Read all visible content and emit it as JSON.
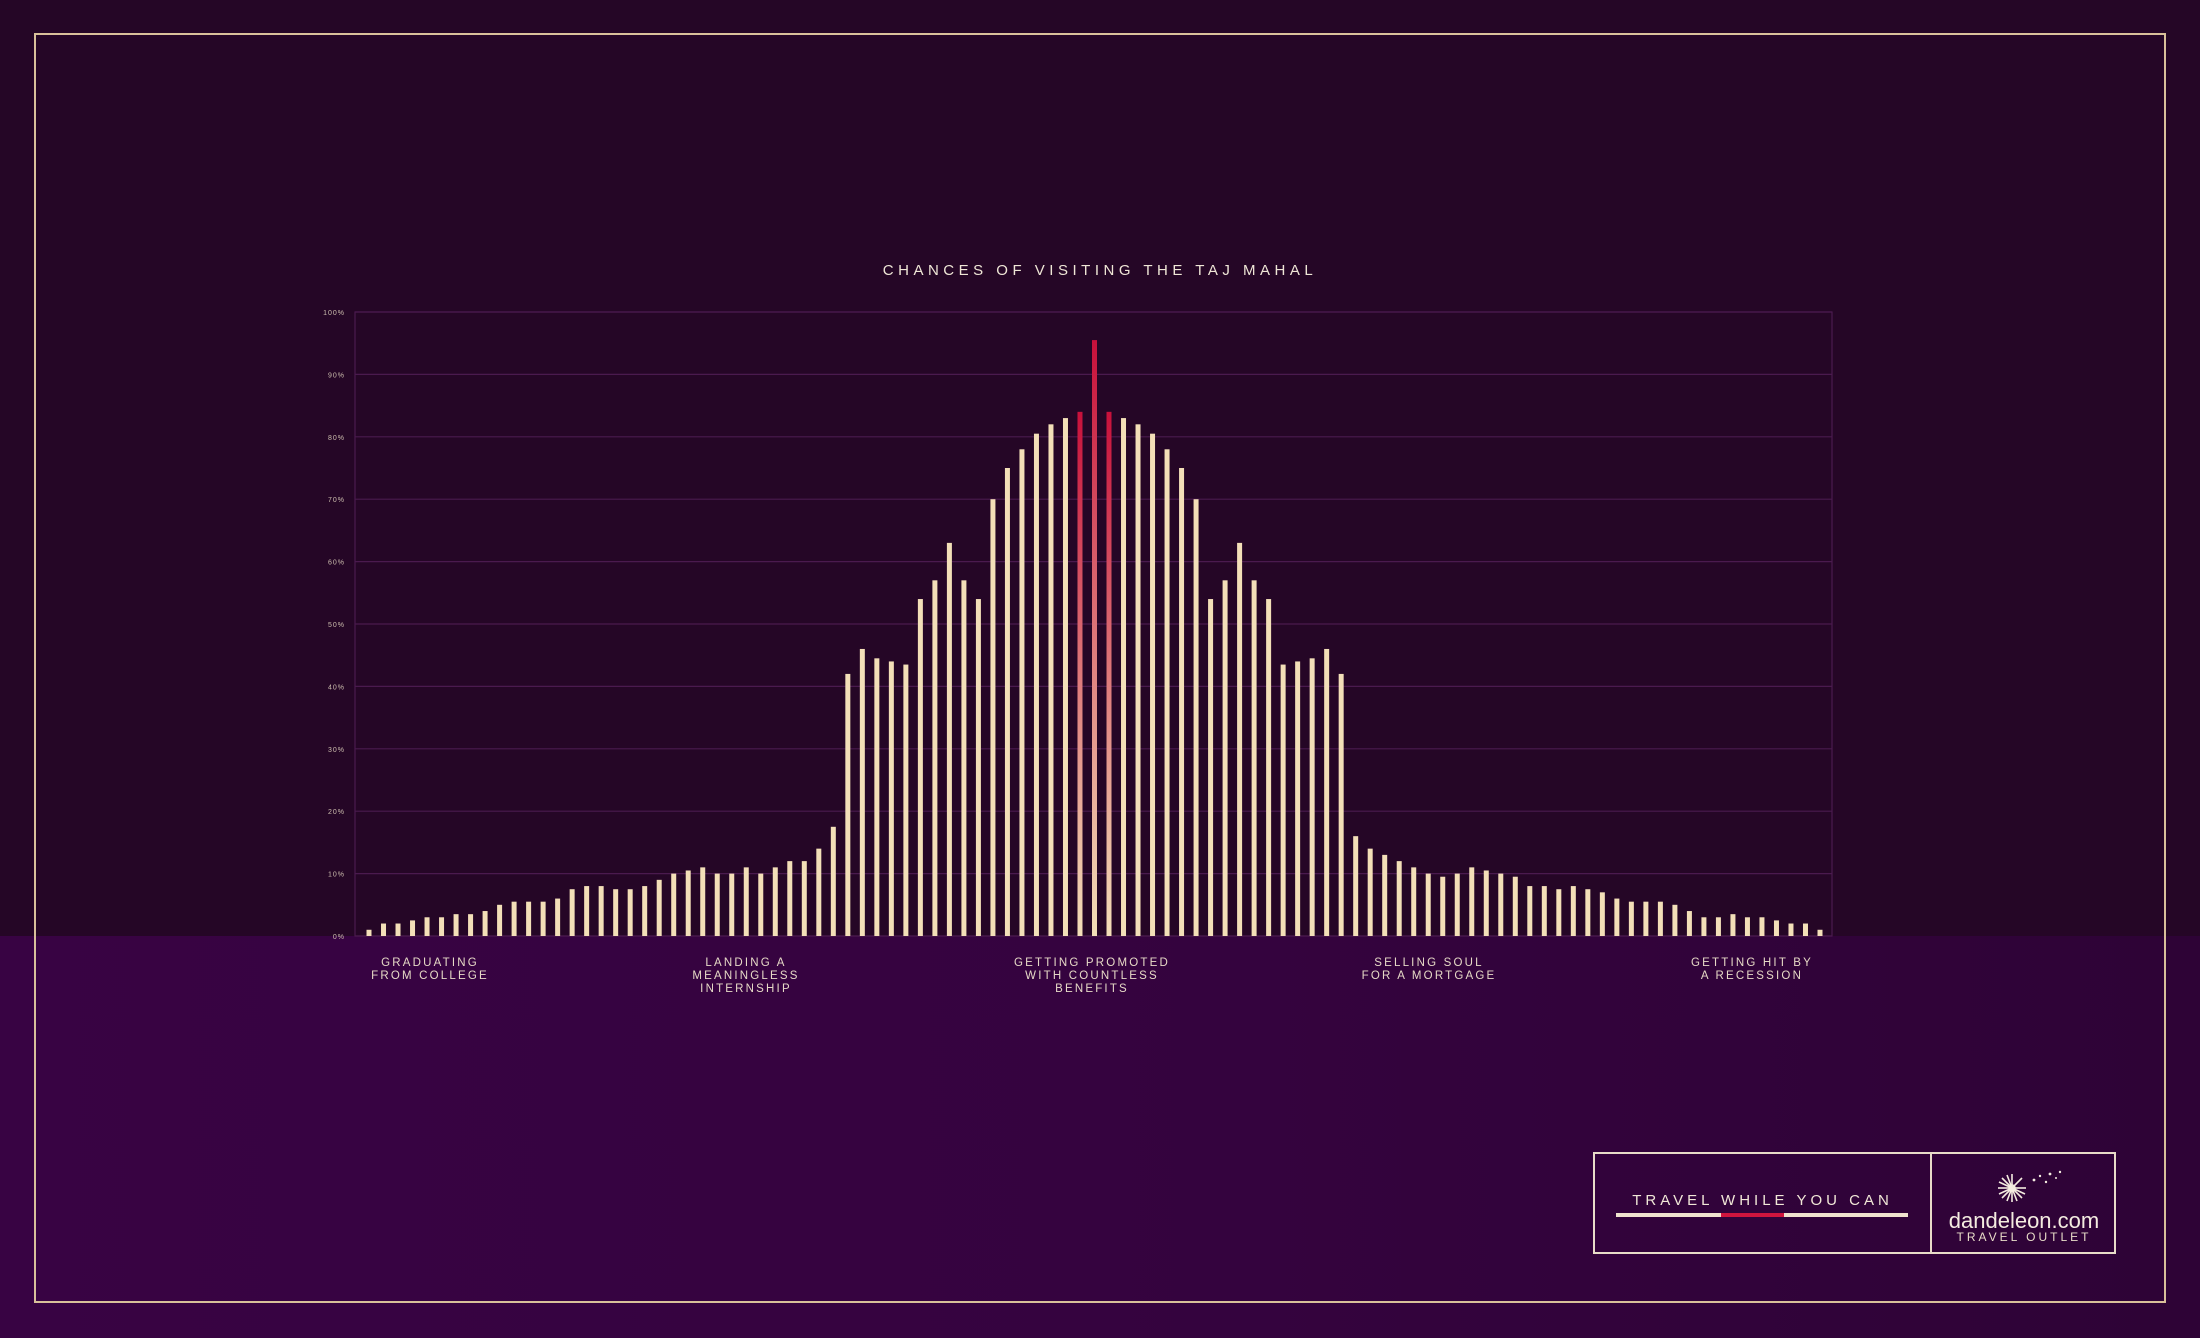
{
  "chart_data": {
    "type": "bar",
    "title": "CHANCES OF VISITING THE TAJ MAHAL",
    "ylim": [
      0,
      100
    ],
    "yticks": [
      "0%",
      "10%",
      "20%",
      "30%",
      "40%",
      "50%",
      "60%",
      "70%",
      "80%",
      "90%",
      "100%"
    ],
    "grid": true,
    "x_labels": [
      "GRADUATING\nFROM COLLEGE",
      "LANDING A\nMEANINGLESS\nINTERNSHIP",
      "GETTING PROMOTED\nWITH COUNTLESS\nBENEFITS",
      "SELLING SOUL\nFOR A MORTGAGE",
      "GETTING HIT BY\nA RECESSION"
    ],
    "values": [
      1,
      2,
      2,
      2.5,
      3,
      3,
      3.5,
      3.5,
      4,
      5,
      5.5,
      5.5,
      5.5,
      6,
      7.5,
      8,
      8,
      7.5,
      7.5,
      8,
      9,
      10,
      10.5,
      11,
      10,
      10,
      11,
      10,
      11,
      12,
      12,
      14,
      17.5,
      42,
      46,
      44.5,
      44,
      43.5,
      54,
      57,
      63,
      57,
      54,
      70,
      75,
      78,
      80.5,
      82,
      83,
      84,
      95.5,
      84,
      83,
      82,
      80.5,
      78,
      75,
      70,
      54,
      57,
      63,
      57,
      54,
      43.5,
      44,
      44.5,
      46,
      42,
      16,
      14,
      13,
      12,
      11,
      10,
      9.5,
      10,
      11,
      10.5,
      10,
      9.5,
      8,
      8,
      7.5,
      8,
      7.5,
      7,
      6,
      5.5,
      5.5,
      5.5,
      5,
      4,
      3,
      3,
      3.5,
      3,
      3,
      2.5,
      2,
      2,
      1
    ],
    "highlight_color": "#c8103b",
    "bar_color": "#f3dfb8"
  },
  "brand": {
    "tagline": "TRAVEL WHILE YOU CAN",
    "name": "dandeleon.com",
    "subtitle": "TRAVEL OUTLET"
  },
  "colors": {
    "background": "#250626",
    "band": "#36033f",
    "frame": "#d9c09a",
    "grid": "#4a1a4e",
    "accent": "#d0153e"
  },
  "icons": {
    "logo": "dandelion-icon"
  }
}
